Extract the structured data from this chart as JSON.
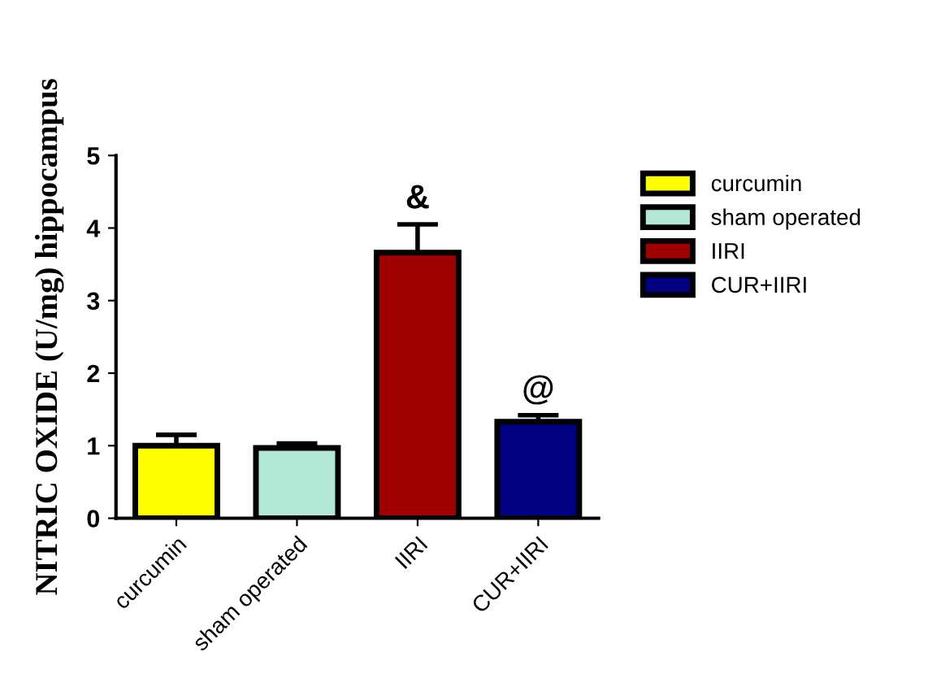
{
  "chart_data": {
    "type": "bar",
    "ylabel": "NITRIC OXIDE (U/mg) hippocampus",
    "categories": [
      "curcumin",
      "sham operated",
      "IIRI",
      "CUR+IIRI"
    ],
    "series": [
      {
        "name": "curcumin",
        "color": "#ffff00",
        "values": [
          1.0,
          null,
          null,
          null
        ],
        "errors": [
          [
            1.0,
            1.15
          ],
          null,
          null,
          null
        ]
      },
      {
        "name": "sham operated",
        "color": "#b3e8d6",
        "values": [
          null,
          0.97,
          null,
          null
        ],
        "errors": [
          null,
          [
            0.97,
            1.03
          ],
          null,
          null
        ]
      },
      {
        "name": "IIRI",
        "color": "#a00000",
        "values": [
          null,
          null,
          3.66,
          null
        ],
        "errors": [
          null,
          null,
          [
            3.66,
            4.05
          ],
          null
        ]
      },
      {
        "name": "CUR+IIRI",
        "color": "#000080",
        "values": [
          null,
          null,
          null,
          1.33
        ],
        "errors": [
          null,
          null,
          null,
          [
            1.33,
            1.42
          ]
        ]
      }
    ],
    "ylim": [
      0,
      5
    ],
    "yticks": [
      0,
      1,
      2,
      3,
      4,
      5
    ],
    "grid": false,
    "legend": "right",
    "annotations": [
      {
        "text": "&",
        "x": "IIRI",
        "y": 4.05
      },
      {
        "text": "@",
        "x": "CUR+IIRI",
        "y": 1.42
      }
    ]
  }
}
